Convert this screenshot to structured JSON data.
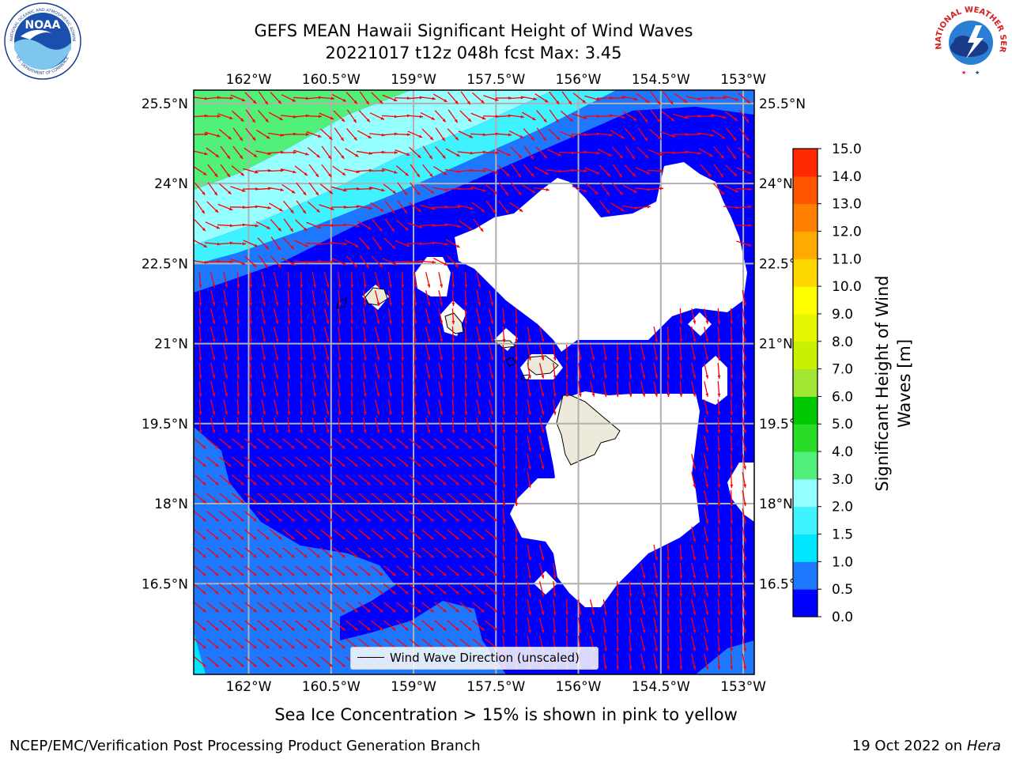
{
  "header": {
    "title_line1": "GEFS MEAN Hawaii Significant Height of Wind Waves",
    "title_line2": "20221017 t12z 048h fcst   Max: 3.45"
  },
  "logos": {
    "noaa": {
      "text": "NOAA",
      "ring_text": "NATIONAL OCEANIC AND ATMOSPHERIC ADMINISTRATION",
      "ring_text_bottom": "U.S. DEPARTMENT OF COMMERCE"
    },
    "nws": {
      "ring_text": "NATIONAL WEATHER SERVICE"
    }
  },
  "map": {
    "lon_labels": [
      "162°W",
      "160.5°W",
      "159°W",
      "157.5°W",
      "156°W",
      "154.5°W",
      "153°W"
    ],
    "lon_values": [
      -162,
      -160.5,
      -159,
      -157.5,
      -156,
      -154.5,
      -153
    ],
    "lat_labels": [
      "25.5°N",
      "24°N",
      "22.5°N",
      "21°N",
      "19.5°N",
      "18°N",
      "16.5°N"
    ],
    "lat_values": [
      25.5,
      24,
      22.5,
      21,
      19.5,
      18,
      16.5
    ],
    "lon_range": [
      -163,
      -152.8
    ],
    "lat_range": [
      14.8,
      25.75
    ],
    "legend_label": "Wind Wave Direction (unscaled)"
  },
  "colorbar": {
    "label": "Significant Height of Wind Waves [m]",
    "ticks": [
      "0.0",
      "0.5",
      "1.0",
      "1.5",
      "2.0",
      "3.0",
      "4.0",
      "5.0",
      "6.0",
      "7.0",
      "8.0",
      "9.0",
      "10.0",
      "11.0",
      "12.0",
      "13.0",
      "14.0",
      "15.0"
    ],
    "colors": [
      "#0000ff",
      "#1e78ff",
      "#00e6ff",
      "#3ef2ff",
      "#96ffff",
      "#50f07a",
      "#28dc28",
      "#00c800",
      "#a0e632",
      "#c8f000",
      "#e6f500",
      "#ffff00",
      "#ffd700",
      "#ffaa00",
      "#ff7f00",
      "#ff5500",
      "#ff2800"
    ]
  },
  "wave_bands_legend": {
    "band_0_0.5": "#0000ff",
    "band_0.5_1": "#1e78ff",
    "band_1_1.5": "#00e6ff",
    "band_1.5_2": "#3ef2ff",
    "band_2_3": "#96ffff",
    "band_3_4": "#50f07a"
  },
  "footer": {
    "sea_ice": "Sea Ice Concentration > 15% is shown in pink to yellow",
    "left": "NCEP/EMC/Verification Post Processing Product Generation Branch",
    "right_date": "19 Oct 2022 on ",
    "right_host": "Hera"
  }
}
